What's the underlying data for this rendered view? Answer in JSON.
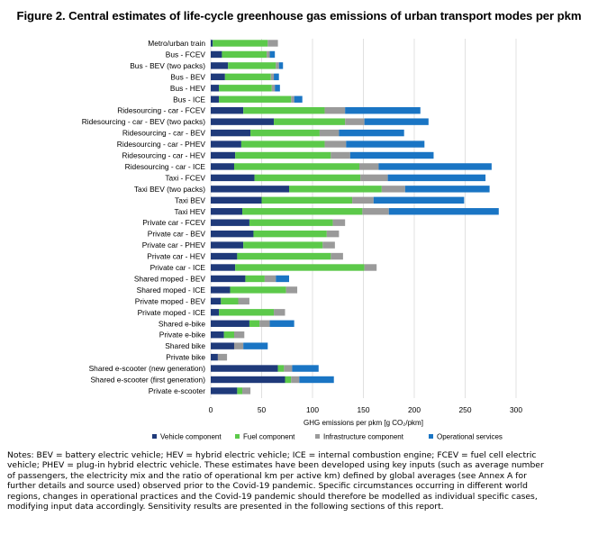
{
  "title": "Figure 2. Central estimates of life-cycle greenhouse gas emissions of urban transport modes per pkm",
  "notes": "Notes: BEV = battery electric vehicle; HEV = hybrid electric vehicle; ICE = internal combustion engine; FCEV = fuel cell electric vehicle; PHEV = plug-in hybrid electric vehicle. These estimates have been developed using key inputs (such as average number of passengers, the electricity mix and the ratio of operational km per active km) defined by global averages (see Annex A for further details and source used) observed prior to the Covid-19 pandemic. Specific circumstances occurring in different world regions, changes in operational practices and the Covid-19 pandemic should therefore be modelled as individual specific cases, modifying input data accordingly. Sensitivity results are presented in the following sections of this report.",
  "chart_data": {
    "type": "bar",
    "orientation": "horizontal",
    "stacked": true,
    "xlabel": "GHG emissions per pkm [g CO₂/pkm]",
    "xlim": [
      0,
      300
    ],
    "xticks": [
      0,
      50,
      100,
      150,
      200,
      250,
      300
    ],
    "grid": true,
    "legend_position": "bottom",
    "categories": [
      "Metro/urban train",
      "Bus - FCEV",
      "Bus - BEV (two packs)",
      "Bus - BEV",
      "Bus - HEV",
      "Bus - ICE",
      "Ridesourcing - car - FCEV",
      "Ridesourcing - car - BEV (two packs)",
      "Ridesourcing - car - BEV",
      "Ridesourcing - car - PHEV",
      "Ridesourcing - car - HEV",
      "Ridesourcing - car - ICE",
      "Taxi - FCEV",
      "Taxi  BEV (two packs)",
      "Taxi  BEV",
      "Taxi  HEV",
      "Private car - FCEV",
      "Private car - BEV",
      "Private car - PHEV",
      "Private car - HEV",
      "Private car - ICE",
      "Shared moped - BEV",
      "Shared moped - ICE",
      "Private moped - BEV",
      "Private moped - ICE",
      "Shared e-bike",
      "Private e-bike",
      "Shared bike",
      "Private bike",
      "Shared e-scooter (new generation)",
      "Shared e-scooter (first generation)",
      "Private e-scooter"
    ],
    "series": [
      {
        "name": "Vehicle component",
        "color": "#1f3a7a",
        "values": [
          2,
          11,
          17,
          14,
          8,
          8,
          32,
          62,
          39,
          30,
          24,
          23,
          43,
          77,
          50,
          31,
          38,
          42,
          32,
          26,
          24,
          34,
          19,
          10,
          8,
          38,
          13,
          23,
          7,
          66,
          73,
          26
        ]
      },
      {
        "name": "Fuel component",
        "color": "#5cc94a",
        "values": [
          54,
          44,
          47,
          45,
          52,
          71,
          80,
          70,
          68,
          82,
          94,
          123,
          104,
          91,
          89,
          118,
          82,
          72,
          78,
          92,
          127,
          19,
          55,
          17,
          54,
          10,
          10,
          0,
          0,
          6,
          6,
          5
        ]
      },
      {
        "name": "Infrastructure component",
        "color": "#9a9a9a",
        "values": [
          10,
          3,
          3,
          3,
          3,
          3,
          20,
          19,
          19,
          21,
          19,
          19,
          27,
          23,
          21,
          26,
          12,
          12,
          12,
          12,
          12,
          11,
          11,
          11,
          11,
          10,
          10,
          9,
          9,
          8,
          8,
          8
        ]
      },
      {
        "name": "Operational services",
        "color": "#1a75c4",
        "values": [
          0,
          5,
          4,
          5,
          5,
          8,
          74,
          63,
          64,
          77,
          82,
          111,
          96,
          83,
          89,
          108,
          0,
          0,
          0,
          0,
          0,
          13,
          0,
          0,
          0,
          24,
          0,
          24,
          0,
          26,
          34,
          0
        ]
      }
    ]
  }
}
